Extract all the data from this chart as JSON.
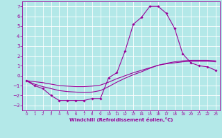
{
  "xlabel": "Windchill (Refroidissement éolien,°C)",
  "bg_color": "#b3e8e8",
  "grid_color": "#ffffff",
  "line_color": "#990099",
  "x_ticks": [
    0,
    1,
    2,
    3,
    4,
    5,
    6,
    7,
    8,
    9,
    10,
    11,
    12,
    13,
    14,
    15,
    16,
    17,
    18,
    19,
    20,
    21,
    22,
    23
  ],
  "ylim": [
    -3.5,
    7.5
  ],
  "xlim": [
    -0.5,
    23.5
  ],
  "yticks": [
    -3,
    -2,
    -1,
    0,
    1,
    2,
    3,
    4,
    5,
    6,
    7
  ],
  "curve1_x": [
    0,
    1,
    2,
    3,
    4,
    5,
    6,
    7,
    8,
    9,
    10,
    11,
    12,
    13,
    14,
    15,
    16,
    17,
    18,
    19,
    20,
    21,
    22,
    23
  ],
  "curve1_y": [
    -0.5,
    -1.0,
    -1.3,
    -2.0,
    -2.5,
    -2.5,
    -2.5,
    -2.5,
    -2.3,
    -2.3,
    -0.2,
    0.3,
    2.5,
    5.2,
    5.9,
    7.0,
    7.0,
    6.3,
    4.8,
    2.2,
    1.3,
    1.0,
    0.9,
    0.55
  ],
  "curve2_x": [
    0,
    1,
    2,
    3,
    4,
    5,
    6,
    7,
    8,
    9,
    10,
    11,
    12,
    13,
    14,
    15,
    16,
    17,
    18,
    19,
    20,
    21,
    22,
    23
  ],
  "curve2_y": [
    -0.5,
    -0.85,
    -1.1,
    -1.3,
    -1.5,
    -1.6,
    -1.65,
    -1.7,
    -1.65,
    -1.5,
    -1.1,
    -0.65,
    -0.25,
    0.1,
    0.4,
    0.75,
    1.05,
    1.25,
    1.4,
    1.5,
    1.55,
    1.55,
    1.55,
    1.5
  ],
  "curve3_x": [
    0,
    1,
    2,
    3,
    4,
    5,
    6,
    7,
    8,
    9,
    10,
    11,
    12,
    13,
    14,
    15,
    16,
    17,
    18,
    19,
    20,
    21,
    22,
    23
  ],
  "curve3_y": [
    -0.5,
    -0.6,
    -0.7,
    -0.85,
    -1.0,
    -1.05,
    -1.1,
    -1.1,
    -1.05,
    -0.95,
    -0.65,
    -0.3,
    0.0,
    0.3,
    0.55,
    0.8,
    1.05,
    1.2,
    1.3,
    1.4,
    1.45,
    1.45,
    1.45,
    1.4
  ]
}
